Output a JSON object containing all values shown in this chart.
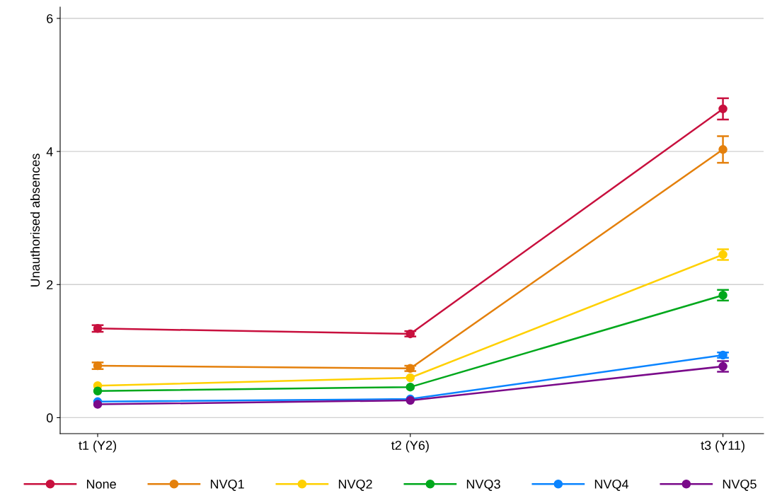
{
  "chart_data": {
    "type": "line",
    "ylabel": "Unauthorised absences",
    "categories": [
      "t1 (Y2)",
      "t2 (Y6)",
      "t3 (Y11)"
    ],
    "ylim": [
      -0.24,
      6.17
    ],
    "yticks": [
      0,
      2,
      4,
      6
    ],
    "grid": "y",
    "legend": "bottom",
    "marker": "circle",
    "line_style": "solid",
    "series": [
      {
        "name": "None",
        "color": "#c8103e",
        "values": [
          1.34,
          1.26,
          4.64
        ],
        "errors": [
          0.05,
          0.04,
          0.16
        ]
      },
      {
        "name": "NVQ1",
        "color": "#e4800c",
        "values": [
          0.78,
          0.74,
          4.03
        ],
        "errors": [
          0.05,
          0.04,
          0.2
        ]
      },
      {
        "name": "NVQ2",
        "color": "#ffd000",
        "values": [
          0.48,
          0.6,
          2.45
        ],
        "errors": [
          null,
          null,
          0.08
        ]
      },
      {
        "name": "NVQ3",
        "color": "#00a81c",
        "values": [
          0.4,
          0.46,
          1.84
        ],
        "errors": [
          null,
          null,
          0.08
        ]
      },
      {
        "name": "NVQ4",
        "color": "#0a84ff",
        "values": [
          0.24,
          0.28,
          0.94
        ],
        "errors": [
          null,
          null,
          0.04
        ]
      },
      {
        "name": "NVQ5",
        "color": "#7a0a8a",
        "values": [
          0.2,
          0.26,
          0.77
        ],
        "errors": [
          null,
          null,
          0.08
        ]
      }
    ]
  }
}
